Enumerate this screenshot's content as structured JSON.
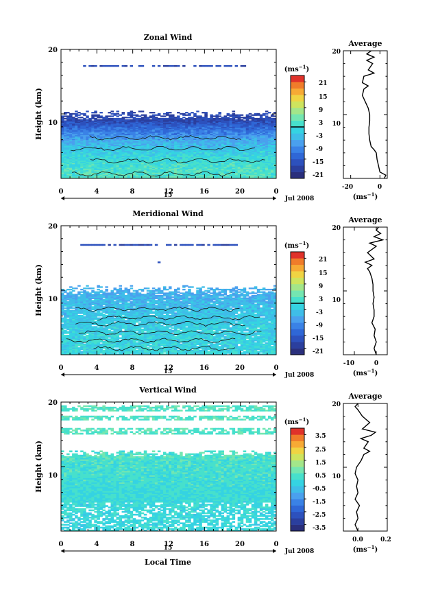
{
  "chart_data": [
    {
      "type": "heatmap",
      "title": "Zonal Wind",
      "ylabel": "Height (km)",
      "ylim": [
        0,
        20
      ],
      "y_ticks": [
        "10",
        "20"
      ],
      "xlim": [
        0,
        24
      ],
      "x_ticks": [
        "0",
        "4",
        "8",
        "12",
        "16",
        "20",
        "0"
      ],
      "day_label": "15",
      "date_label": "Jul 2008",
      "colorbar": {
        "unit": "(ms⁻¹)",
        "range": [
          -24,
          24
        ],
        "tick_labels": [
          "21",
          "15",
          "9",
          "3",
          "-3",
          "-9",
          "-15",
          "-21"
        ],
        "tick_values": [
          21,
          15,
          9,
          3,
          -3,
          -9,
          -15,
          -21
        ],
        "zero_line": 0
      },
      "field": {
        "core_top_km": 9.0,
        "fringe_top_km": 10.5,
        "top_value": -18,
        "bottom_value": 2,
        "upper_patches": [
          {
            "height_km": 17.4,
            "x_range": [
              2.5,
              20.5
            ],
            "value": -17
          }
        ]
      },
      "average_profile": {
        "title": "Average",
        "xlabel": "(ms⁻¹)",
        "xlim": [
          -25,
          5
        ],
        "x_tick_labels": [
          "-20",
          "0"
        ],
        "x_tick_values": [
          -20,
          0
        ],
        "ylim": [
          0,
          20
        ],
        "y_tick_labels": [
          "10",
          "20"
        ],
        "points": [
          [
            3,
            0
          ],
          [
            4,
            0.5
          ],
          [
            0,
            1
          ],
          [
            -1,
            2
          ],
          [
            -2,
            3
          ],
          [
            -2.5,
            4
          ],
          [
            -4,
            4.5
          ],
          [
            -6,
            5
          ],
          [
            -7,
            6
          ],
          [
            -7.5,
            7
          ],
          [
            -7.5,
            8
          ],
          [
            -7,
            9
          ],
          [
            -7,
            10
          ],
          [
            -8,
            11
          ],
          [
            -10,
            12
          ],
          [
            -12,
            13
          ],
          [
            -11,
            14
          ],
          [
            -8,
            14.5
          ],
          [
            -12,
            15
          ],
          [
            -11,
            16
          ],
          [
            -4,
            16.5
          ],
          [
            -8,
            17
          ],
          [
            -5,
            18
          ],
          [
            -9,
            18.5
          ],
          [
            -4,
            19
          ],
          [
            -9,
            19.5
          ],
          [
            -6,
            20
          ]
        ]
      }
    },
    {
      "type": "heatmap",
      "title": "Meridional Wind",
      "ylabel": "Height (km)",
      "ylim": [
        0,
        20
      ],
      "y_ticks": [
        "10",
        "20"
      ],
      "xlim": [
        0,
        24
      ],
      "x_ticks": [
        "0",
        "4",
        "8",
        "12",
        "16",
        "20",
        "0"
      ],
      "day_label": "15",
      "date_label": "Jul 2008",
      "colorbar": {
        "unit": "(ms⁻¹)",
        "range": [
          -24,
          24
        ],
        "tick_labels": [
          "21",
          "15",
          "9",
          "3",
          "-3",
          "-9",
          "-15",
          "-21"
        ],
        "tick_values": [
          21,
          15,
          9,
          3,
          -3,
          -9,
          -15,
          -21
        ],
        "zero_line": 0
      },
      "field": {
        "core_top_km": 9.2,
        "fringe_top_km": 10.8,
        "top_value": -6,
        "bottom_value": -1,
        "upper_patches": [
          {
            "height_km": 17.0,
            "x_range": [
              2.0,
              20.0
            ],
            "value": -17
          },
          {
            "height_km": 14.3,
            "x_range": [
              10.5,
              11.5
            ],
            "value": -17
          }
        ]
      },
      "average_profile": {
        "title": "Average",
        "xlabel": "(ms⁻¹)",
        "xlim": [
          -15,
          5
        ],
        "x_tick_labels": [
          "-10",
          "0"
        ],
        "x_tick_values": [
          -10,
          0
        ],
        "ylim": [
          0,
          20
        ],
        "y_tick_labels": [
          "10",
          "20"
        ],
        "points": [
          [
            0,
            0
          ],
          [
            -1,
            1
          ],
          [
            0,
            2
          ],
          [
            -1,
            3
          ],
          [
            -0.5,
            4
          ],
          [
            -2,
            5
          ],
          [
            -1,
            6
          ],
          [
            -1,
            7
          ],
          [
            -1.5,
            8
          ],
          [
            -1,
            9
          ],
          [
            -1.5,
            10
          ],
          [
            -1.5,
            11
          ],
          [
            -2,
            12
          ],
          [
            -3,
            13
          ],
          [
            -4,
            13.5
          ],
          [
            -2,
            14
          ],
          [
            -5,
            14.5
          ],
          [
            -1,
            15
          ],
          [
            -4,
            16
          ],
          [
            -2,
            16.5
          ],
          [
            0,
            17
          ],
          [
            -3,
            17.5
          ],
          [
            3,
            18
          ],
          [
            -1,
            18.5
          ],
          [
            2,
            19
          ],
          [
            0,
            19.5
          ],
          [
            1,
            20
          ]
        ]
      }
    },
    {
      "type": "heatmap",
      "title": "Vertical Wind",
      "ylabel": "Height (km)",
      "ylim": [
        0,
        20
      ],
      "y_ticks": [
        "10",
        "20"
      ],
      "xlim": [
        0,
        24
      ],
      "x_ticks": [
        "0",
        "4",
        "8",
        "12",
        "16",
        "20",
        "0"
      ],
      "xlabel": "Local Time",
      "day_label": "15",
      "date_label": "Jul 2008",
      "colorbar": {
        "unit": "(ms⁻¹)",
        "range": [
          -4,
          4
        ],
        "tick_labels": [
          "3.5",
          "2.5",
          "1.5",
          "0.5",
          "-0.5",
          "-1.5",
          "-2.5",
          "-3.5"
        ],
        "tick_values": [
          3.5,
          2.5,
          1.5,
          0.5,
          -0.5,
          -1.5,
          -2.5,
          -3.5
        ]
      },
      "field": {
        "core_top_km": 11.5,
        "fringe_top_km": 12.5,
        "top_value": 0.3,
        "bottom_value": -0.1,
        "upper_bands_km": [
          [
            15.0,
            16.0
          ],
          [
            17.2,
            17.9
          ],
          [
            18.6,
            19.5
          ]
        ],
        "upper_band_value": 0.4
      },
      "average_profile": {
        "title": "Average",
        "xlabel": "(ms⁻¹)",
        "xlim": [
          -0.1,
          0.2
        ],
        "x_tick_labels": [
          "0.0",
          "0.2"
        ],
        "x_tick_values": [
          0.0,
          0.2
        ],
        "ylim": [
          0,
          20
        ],
        "y_tick_labels": [
          "10",
          "20"
        ],
        "points": [
          [
            0.0,
            0
          ],
          [
            -0.02,
            1
          ],
          [
            0.0,
            2
          ],
          [
            -0.01,
            3
          ],
          [
            0.01,
            4
          ],
          [
            -0.02,
            5
          ],
          [
            0.0,
            6
          ],
          [
            -0.01,
            7
          ],
          [
            0.0,
            8
          ],
          [
            -0.02,
            9
          ],
          [
            -0.01,
            10
          ],
          [
            0.02,
            11
          ],
          [
            0.04,
            12
          ],
          [
            0.08,
            12.5
          ],
          [
            0.04,
            13
          ],
          [
            0.07,
            14
          ],
          [
            0.02,
            14.5
          ],
          [
            0.09,
            15
          ],
          [
            0.12,
            15.5
          ],
          [
            0.03,
            16
          ],
          [
            0.08,
            17
          ],
          [
            0.03,
            18
          ],
          [
            0.0,
            19
          ],
          [
            -0.02,
            19.5
          ],
          [
            0.0,
            20
          ]
        ]
      }
    }
  ]
}
